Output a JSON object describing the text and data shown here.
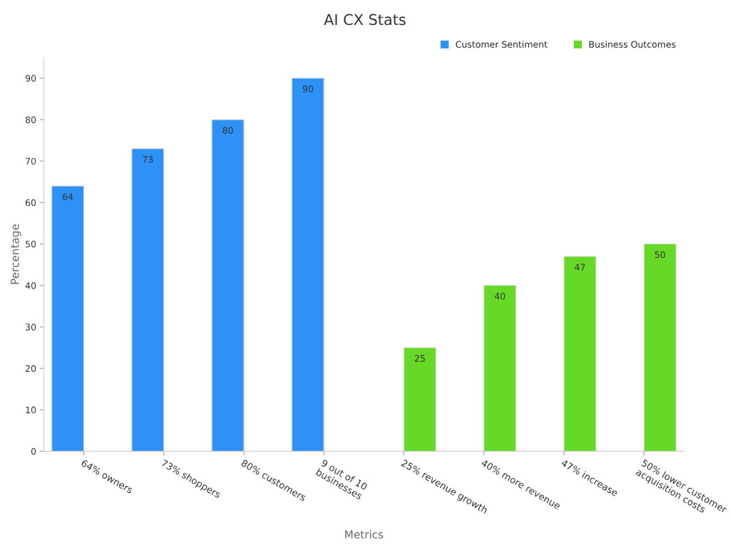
{
  "chart_data": {
    "type": "bar",
    "title": "AI CX Stats",
    "xlabel": "Metrics",
    "ylabel": "Percentage",
    "categories": [
      "64% owners",
      "73% shoppers",
      "80% customers",
      "9 out of 10\nbusinesses",
      "25% revenue growth",
      "40% more revenue",
      "47% increase",
      "50% lower customer\nacquisition costs"
    ],
    "series": [
      {
        "name": "Customer Sentiment",
        "color": "#2e91f5",
        "values": [
          64,
          73,
          80,
          90,
          null,
          null,
          null,
          null
        ]
      },
      {
        "name": "Business Outcomes",
        "color": "#66d926",
        "values": [
          null,
          null,
          null,
          null,
          25,
          40,
          47,
          50
        ]
      }
    ],
    "ylim": [
      0,
      95
    ],
    "yticks": [
      0,
      10,
      20,
      30,
      40,
      50,
      60,
      70,
      80,
      90
    ],
    "data_labels": true,
    "legend": "top right",
    "grid": false
  }
}
